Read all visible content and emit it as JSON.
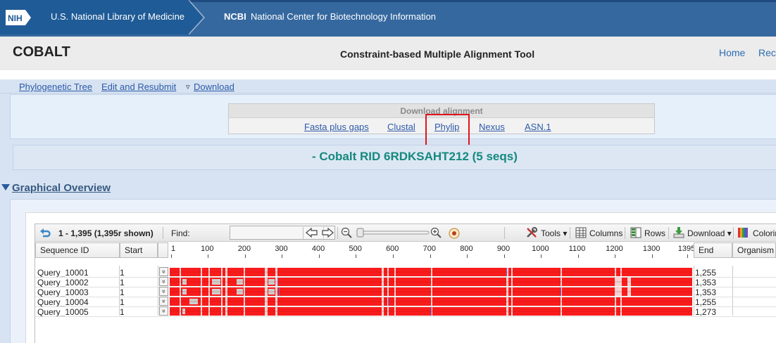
{
  "header": {
    "nih_logo_text": "NIH",
    "nlm": "U.S. National Library of Medicine",
    "ncbi_abbr": "NCBI",
    "ncbi_full": "National Center for Biotechnology Information"
  },
  "app": {
    "name": "COBALT",
    "description": "Constraint-based Multiple Alignment Tool",
    "nav_home": "Home",
    "nav_recent": "Rec"
  },
  "links": {
    "phylogenetic_tree": "Phylogenetic Tree",
    "edit_resubmit": "Edit and Resubmit",
    "download": "Download"
  },
  "download_panel": {
    "title": "Download alignment",
    "formats": [
      "Fasta plus gaps",
      "Clustal",
      "Phylip",
      "Nexus",
      "ASN.1"
    ]
  },
  "rid_title": "- Cobalt RID 6RDKSAHT212 (5 seqs)",
  "overview_title": "Graphical Overview",
  "viewer": {
    "range": "1 - 1,395 (1,395r shown)",
    "find_label": "Find:",
    "find_value": "",
    "tools": "Tools",
    "columns": "Columns",
    "rows": "Rows",
    "download": "Download",
    "coloring": "Colorin",
    "headers": {
      "sequence_id": "Sequence ID",
      "start": "Start",
      "end": "End",
      "organism": "Organism"
    },
    "ruler_ticks": [
      "1",
      "100",
      "200",
      "300",
      "400",
      "500",
      "600",
      "700",
      "800",
      "900",
      "1000",
      "1100",
      "1200",
      "1300",
      "1395"
    ],
    "rows_data": [
      {
        "id": "Query_10001",
        "start": "1",
        "end": "1,255"
      },
      {
        "id": "Query_10002",
        "start": "1",
        "end": "1,353"
      },
      {
        "id": "Query_10003",
        "start": "1",
        "end": "1,353"
      },
      {
        "id": "Query_10004",
        "start": "1",
        "end": "1,255"
      },
      {
        "id": "Query_10005",
        "start": "1",
        "end": "1,273"
      }
    ]
  },
  "colors": {
    "header_blue": "#35689f",
    "alignment_red": "#f91c1c",
    "highlight": "#e0141b",
    "rid_teal": "#14897f"
  }
}
